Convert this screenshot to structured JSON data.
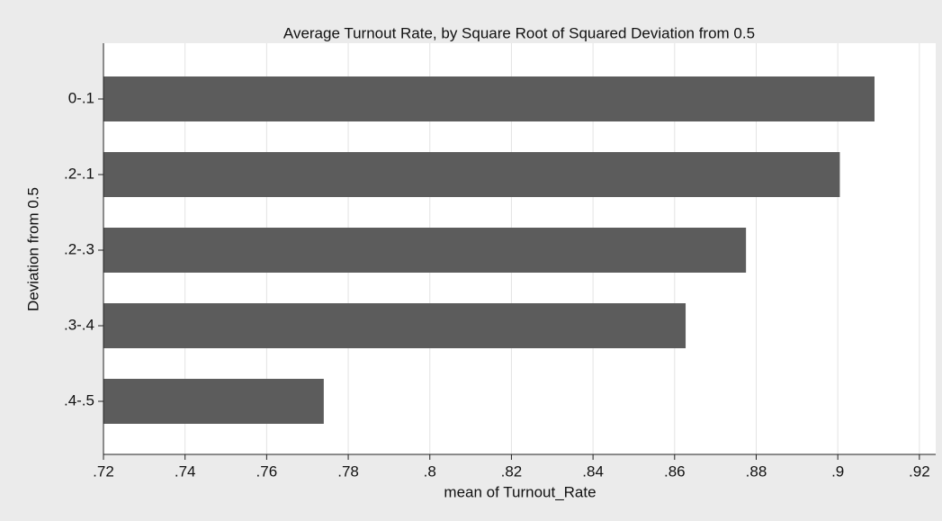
{
  "chart_data": {
    "type": "bar",
    "orientation": "horizontal",
    "title": "Average Turnout Rate, by Square Root of Squared Deviation from 0.5",
    "x_label": "mean of Turnout_Rate",
    "y_label": "Deviation from 0.5",
    "categories": [
      "0-.1",
      ".2-.1",
      ".2-.3",
      ".3-.4",
      ".4-.5"
    ],
    "values": [
      0.909,
      0.9005,
      0.8775,
      0.8627,
      0.774
    ],
    "color": "#5c5c5c",
    "xlim": [
      0.72,
      0.924
    ],
    "xticks": [
      {
        "value": 0.72,
        "label": ".72"
      },
      {
        "value": 0.74,
        "label": ".74"
      },
      {
        "value": 0.76,
        "label": ".76"
      },
      {
        "value": 0.78,
        "label": ".78"
      },
      {
        "value": 0.8,
        "label": ".8"
      },
      {
        "value": 0.82,
        "label": ".82"
      },
      {
        "value": 0.84,
        "label": ".84"
      },
      {
        "value": 0.86,
        "label": ".86"
      },
      {
        "value": 0.88,
        "label": ".88"
      },
      {
        "value": 0.9,
        "label": ".9"
      },
      {
        "value": 0.92,
        "label": ".92"
      }
    ],
    "grid": true
  }
}
